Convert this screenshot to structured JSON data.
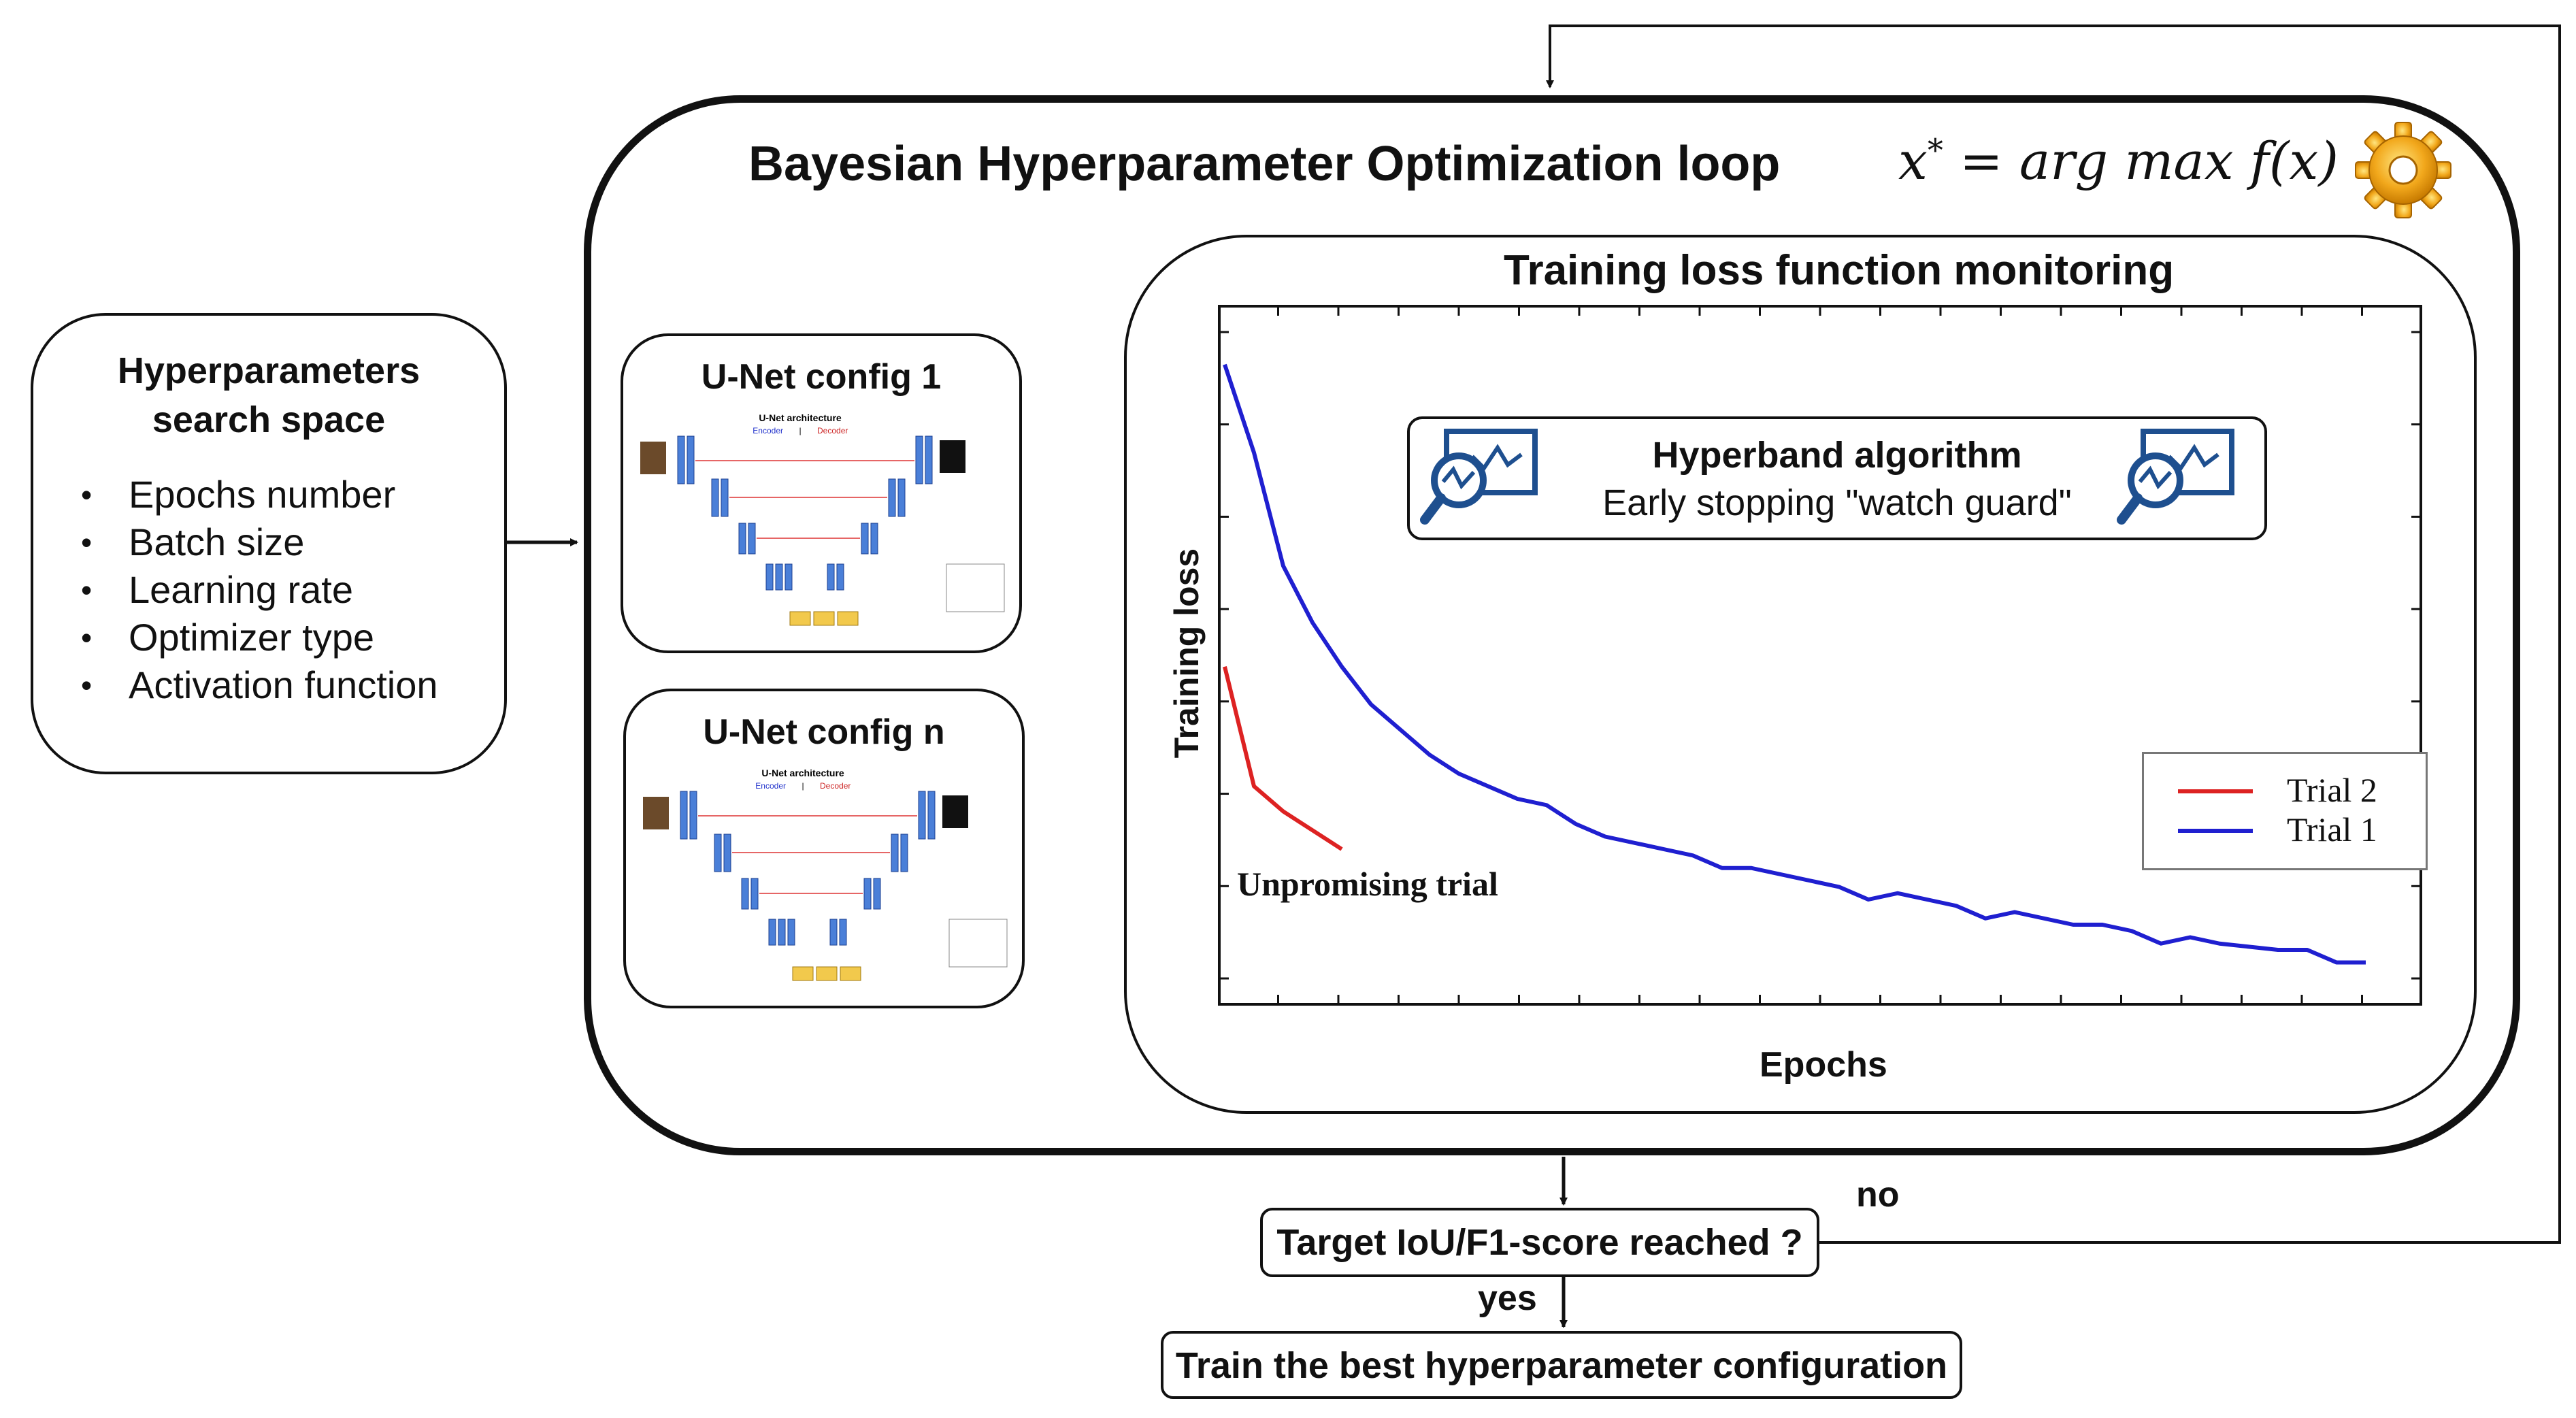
{
  "search_space": {
    "title_line1": "Hyperparameters",
    "title_line2": "search space",
    "items": [
      "Epochs number",
      "Batch size",
      "Learning rate",
      "Optimizer type",
      "Activation function"
    ]
  },
  "loop": {
    "title": "Bayesian Hyperparameter Optimization loop",
    "formula_lhs": "x",
    "formula_star": "*",
    "formula_rhs": "= arg max f(x)",
    "icon": "gear-icon"
  },
  "unet_configs": [
    {
      "title": "U-Net config 1",
      "mini_title": "U-Net architecture",
      "mini_encoder": "Encoder",
      "mini_decoder": "Decoder"
    },
    {
      "title": "U-Net config n",
      "mini_title": "U-Net architecture",
      "mini_encoder": "Encoder",
      "mini_decoder": "Decoder"
    }
  ],
  "monitoring": {
    "title": "Training loss function monitoring",
    "hyperband_title": "Hyperband algorithm",
    "hyperband_subtitle": "Early stopping \"watch guard\"",
    "icon": "monitor-search-icon"
  },
  "chart_data": {
    "type": "line",
    "title": "",
    "xlabel": "Epochs",
    "ylabel": "Training loss",
    "legend_position": "right",
    "annotation": "Unpromising trial",
    "xlim": [
      0,
      40
    ],
    "ylim": [
      0,
      1
    ],
    "series": [
      {
        "name": "Trial 2",
        "color": "#dd2222",
        "x": [
          0,
          1,
          2,
          3,
          4
        ],
        "y": [
          0.49,
          0.3,
          0.26,
          0.23,
          0.2
        ]
      },
      {
        "name": "Trial 1",
        "color": "#1f1fd0",
        "x": [
          0,
          1,
          2,
          3,
          4,
          5,
          6,
          7,
          8,
          9,
          10,
          11,
          12,
          13,
          14,
          15,
          16,
          17,
          18,
          19,
          20,
          21,
          22,
          23,
          24,
          25,
          26,
          27,
          28,
          29,
          30,
          31,
          32,
          33,
          34,
          35,
          36,
          37,
          38,
          39
        ],
        "y": [
          0.97,
          0.83,
          0.65,
          0.56,
          0.49,
          0.43,
          0.39,
          0.35,
          0.32,
          0.3,
          0.28,
          0.27,
          0.24,
          0.22,
          0.21,
          0.2,
          0.19,
          0.17,
          0.17,
          0.16,
          0.15,
          0.14,
          0.12,
          0.13,
          0.12,
          0.11,
          0.09,
          0.1,
          0.09,
          0.08,
          0.08,
          0.07,
          0.05,
          0.06,
          0.05,
          0.045,
          0.04,
          0.04,
          0.02,
          0.02
        ]
      }
    ]
  },
  "decision": {
    "question": "Target IoU/F1-score reached ?",
    "yes_label": "yes",
    "no_label": "no"
  },
  "final": {
    "label": "Train the best hyperparameter configuration"
  }
}
